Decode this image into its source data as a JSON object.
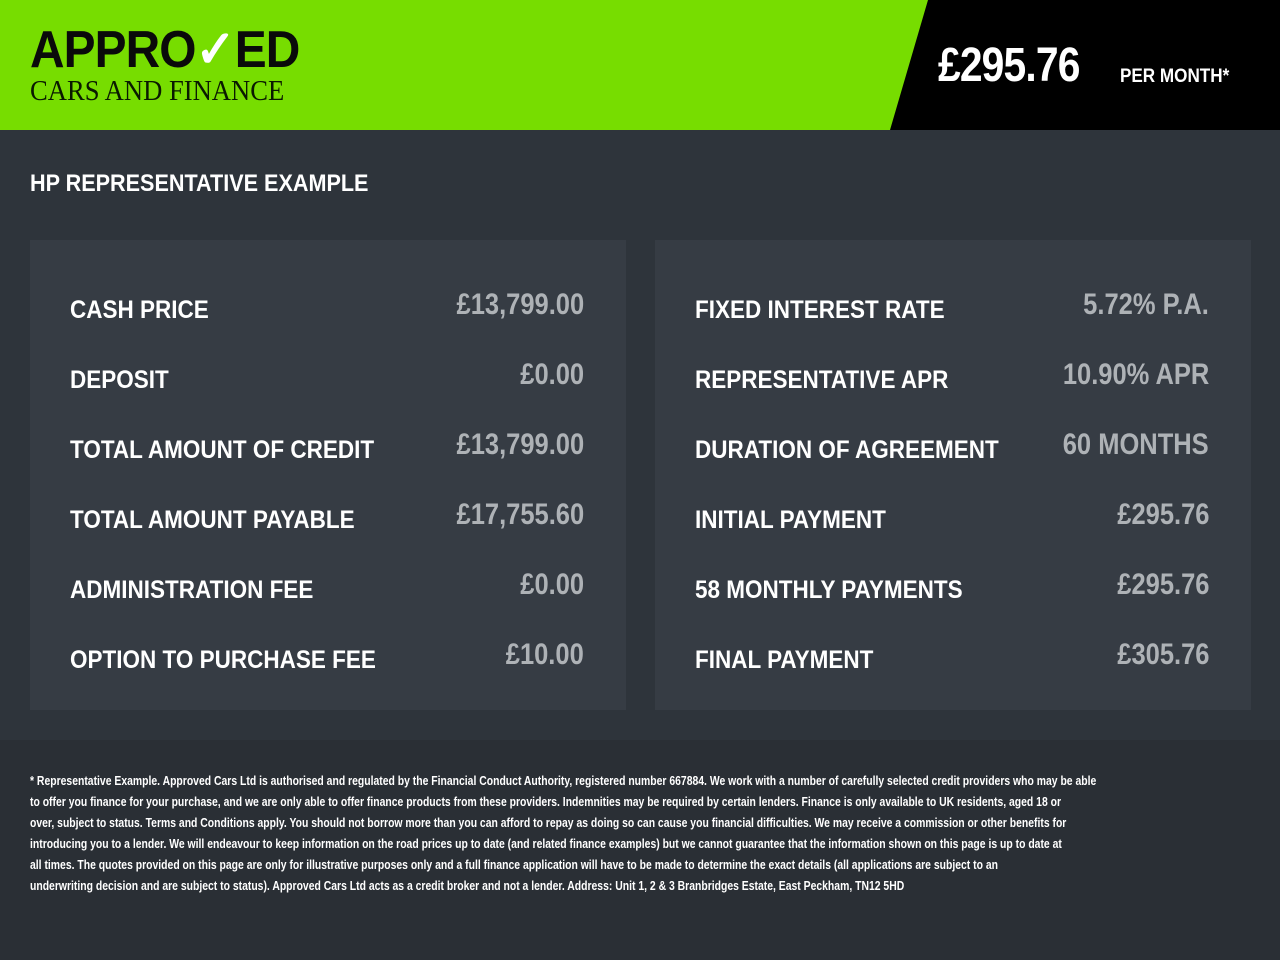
{
  "header": {
    "logo_top_a": "APPRO",
    "logo_top_v": "✓",
    "logo_top_b": "ED",
    "logo_bottom": "CARS AND FINANCE",
    "price": "£295.76",
    "price_suffix": "PER MONTH*",
    "brand_color": "#77dd00"
  },
  "title": "HP REPRESENTATIVE EXAMPLE",
  "left": [
    {
      "label": "CASH PRICE",
      "value": "£13,799.00"
    },
    {
      "label": "DEPOSIT",
      "value": "£0.00"
    },
    {
      "label": "TOTAL AMOUNT OF CREDIT",
      "value": "£13,799.00"
    },
    {
      "label": "TOTAL AMOUNT PAYABLE",
      "value": "£17,755.60"
    },
    {
      "label": "ADMINISTRATION FEE",
      "value": "£0.00"
    },
    {
      "label": "OPTION TO PURCHASE FEE",
      "value": "£10.00"
    }
  ],
  "right": [
    {
      "label": "FIXED INTEREST RATE",
      "value": "5.72% P.A."
    },
    {
      "label": "REPRESENTATIVE APR",
      "value": "10.90% APR"
    },
    {
      "label": "DURATION OF AGREEMENT",
      "value": "60 MONTHS"
    },
    {
      "label": "INITIAL PAYMENT",
      "value": "£295.76"
    },
    {
      "label": "58 MONTHLY PAYMENTS",
      "value": "£295.76"
    },
    {
      "label": "FINAL PAYMENT",
      "value": "£305.76"
    }
  ],
  "disclaimer": [
    "* Representative Example. Approved Cars Ltd is authorised and regulated by the Financial Conduct Authority, registered number 667884. We work with a number of carefully selected credit providers who may be able",
    "to offer you finance for your purchase, and we are only able to offer finance products from these providers. Indemnities may be required by certain lenders. Finance is only available to UK residents, aged 18 or",
    "over, subject to status. Terms and Conditions apply. You should not borrow more than you can afford to repay as doing so can cause you financial difficulties. We may receive a commission or other benefits for",
    "introducing you to a lender. We will endeavour to keep information on the road prices up to date (and related finance examples) but we cannot guarantee that the information shown on this page is up to date at",
    "all times. The quotes provided on this page are only for illustrative purposes only and a full finance application will have to be made to determine the exact details (all applications are subject to an",
    "underwriting decision and are subject to status). Approved Cars Ltd acts as a credit broker and not a lender. Address: Unit 1, 2 & 3 Branbridges Estate, East Peckham, TN12 5HD"
  ]
}
